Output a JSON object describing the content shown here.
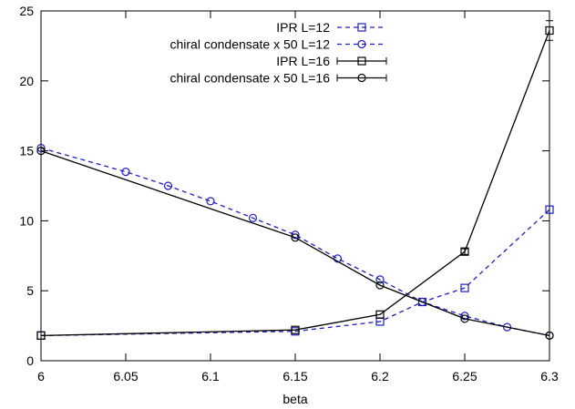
{
  "chart_data": {
    "type": "line",
    "title": "",
    "xlabel": "beta",
    "ylabel": "",
    "xlim": [
      6,
      6.3
    ],
    "ylim": [
      0,
      25
    ],
    "x_ticks": [
      6,
      6.05,
      6.1,
      6.15,
      6.2,
      6.25,
      6.3
    ],
    "x_tick_labels": [
      "6",
      "6.05",
      "6.1",
      "6.15",
      "6.2",
      "6.25",
      "6.3"
    ],
    "y_ticks": [
      0,
      5,
      10,
      15,
      20,
      25
    ],
    "y_tick_labels": [
      "0",
      "5",
      "10",
      "15",
      "20",
      "25"
    ],
    "grid": false,
    "legend_position": "top-right",
    "series": [
      {
        "name": "IPR  L=12",
        "color": "#1f1fbf",
        "dash": "dashed",
        "marker": "square",
        "x": [
          6.0,
          6.15,
          6.2,
          6.225,
          6.25,
          6.3
        ],
        "y": [
          1.8,
          2.1,
          2.8,
          4.2,
          5.2,
          10.8
        ]
      },
      {
        "name": "chiral condensate x 50  L=12",
        "color": "#1f1fbf",
        "dash": "dashed",
        "marker": "circle",
        "x": [
          6.0,
          6.05,
          6.075,
          6.1,
          6.125,
          6.15,
          6.175,
          6.2,
          6.225,
          6.25,
          6.275,
          6.3
        ],
        "y": [
          15.2,
          13.5,
          12.5,
          11.4,
          10.2,
          9.0,
          7.3,
          5.8,
          4.2,
          3.2,
          2.4,
          1.8
        ]
      },
      {
        "name": "IPR  L=16",
        "color": "#000000",
        "dash": "solid",
        "marker": "square",
        "x": [
          6.0,
          6.15,
          6.2,
          6.25,
          6.3
        ],
        "y": [
          1.8,
          2.2,
          3.3,
          7.8,
          23.6
        ],
        "y_err": [
          0,
          0,
          0,
          0.2,
          0.7
        ]
      },
      {
        "name": "chiral condensate x 50  L=16",
        "color": "#000000",
        "dash": "solid",
        "marker": "circle",
        "x": [
          6.0,
          6.15,
          6.2,
          6.25,
          6.3
        ],
        "y": [
          15.0,
          8.8,
          5.4,
          3.0,
          1.8
        ]
      }
    ]
  }
}
